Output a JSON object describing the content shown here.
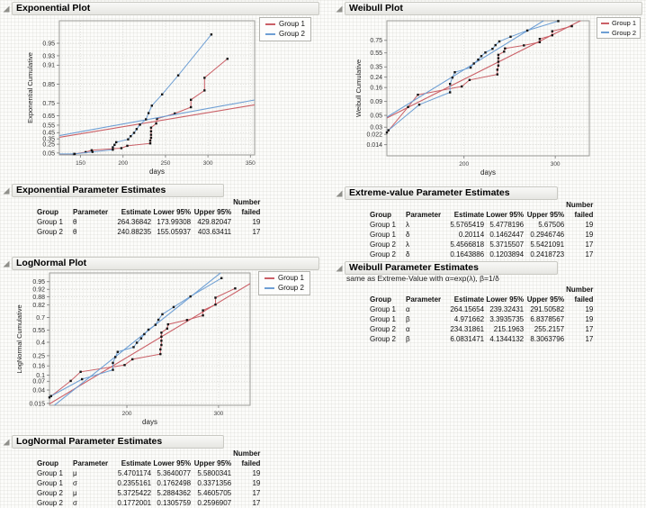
{
  "colors": {
    "group1": "#ca5f66",
    "group2": "#6e9fd4",
    "points": "#151515",
    "plot_border": "#9c9c98",
    "grid": "#dcdcd8",
    "header_bar": "#e6e6e2"
  },
  "legend": {
    "labels": [
      "Group 1",
      "Group 2"
    ]
  },
  "groups": [
    {
      "name": "Group 1",
      "color": "#ca5f66",
      "points": [
        [
          142,
          0.0238
        ],
        [
          156,
          0.0714
        ],
        [
          163,
          0.119
        ],
        [
          198,
          0.1667
        ],
        [
          205,
          0.2158
        ],
        [
          232,
          0.2664
        ],
        [
          232,
          0.317
        ],
        [
          233,
          0.3676
        ],
        [
          233,
          0.4182
        ],
        [
          233,
          0.4688
        ],
        [
          233,
          0.5194
        ],
        [
          239,
          0.57
        ],
        [
          240,
          0.6206
        ],
        [
          261,
          0.6712
        ],
        [
          280,
          0.7218
        ],
        [
          280,
          0.7723
        ],
        [
          296,
          0.8229
        ],
        [
          296,
          0.8735
        ],
        [
          323,
          0.9241
        ]
      ]
    },
    {
      "name": "Group 2",
      "color": "#6e9fd4",
      "points": [
        [
          143,
          0.0263
        ],
        [
          164,
          0.0789
        ],
        [
          188,
          0.1316
        ],
        [
          188,
          0.1842
        ],
        [
          190,
          0.2368
        ],
        [
          192,
          0.2895
        ],
        [
          206,
          0.3421
        ],
        [
          209,
          0.3947
        ],
        [
          213,
          0.4474
        ],
        [
          216,
          0.5
        ],
        [
          220,
          0.5559
        ],
        [
          227,
          0.6151
        ],
        [
          230,
          0.6743
        ],
        [
          234,
          0.7335
        ],
        [
          246,
          0.8026
        ],
        [
          265,
          0.8816
        ],
        [
          304,
          0.9605
        ]
      ]
    }
  ],
  "chart_data": [
    {
      "id": "exponential",
      "type": "line",
      "title": "Exponential Plot",
      "xlabel": "days",
      "ylabel": "Exponential Cumulative",
      "x_scale": "linear",
      "y_transform": "exponential",
      "x_range": [
        125,
        355
      ],
      "y_range_transformed": [
        0,
        3.6
      ],
      "x_ticks": [
        150,
        200,
        250,
        300,
        350
      ],
      "y_tick_labels": [
        "0.05",
        "0.25",
        "0.35",
        "0.45",
        "0.55",
        "0.65",
        "0.75",
        "0.85",
        "0.91",
        "0.93",
        "0.95"
      ],
      "grid": true,
      "legend_position": "top-right",
      "fits": [
        {
          "group": "Group 1",
          "theta": 264.36842
        },
        {
          "group": "Group 2",
          "theta": 240.88235
        }
      ]
    },
    {
      "id": "weibull",
      "type": "line",
      "title": "Weibull Plot",
      "xlabel": "days",
      "ylabel": "Weibull Cumulative",
      "x_scale": "log",
      "y_transform": "weibull",
      "x_range": [
        142,
        349
      ],
      "y_range_transformed": [
        -4.75,
        1.19
      ],
      "x_ticks": [
        200,
        300
      ],
      "y_tick_labels": [
        "0.014",
        "0.022",
        "0.03",
        "0.05",
        "0.09",
        "0.16",
        "0.24",
        "0.35",
        "0.55",
        "0.75"
      ],
      "grid": true,
      "legend_position": "top-right",
      "fits": [
        {
          "group": "Group 1",
          "alpha": 264.15654,
          "beta": 4.971662
        },
        {
          "group": "Group 2",
          "alpha": 234.31861,
          "beta": 6.0831471
        }
      ]
    },
    {
      "id": "lognormal",
      "type": "line",
      "title": "LogNormal Plot",
      "xlabel": "days",
      "ylabel": "LogNormal Cumulative",
      "x_scale": "log",
      "y_transform": "lognormal",
      "x_range": [
        142,
        345
      ],
      "y_range_transformed": [
        -2.23,
        1.92
      ],
      "x_ticks": [
        200,
        300
      ],
      "y_tick_labels": [
        "0.015",
        "0.04",
        "0.07",
        "0.1",
        "0.16",
        "0.25",
        "0.4",
        "0.55",
        "0.7",
        "0.82",
        "0.88",
        "0.92",
        "0.95"
      ],
      "grid": true,
      "legend_position": "top-right",
      "fits": [
        {
          "group": "Group 1",
          "mu": 5.4701174,
          "sigma": 0.2355161
        },
        {
          "group": "Group 2",
          "mu": 5.3725422,
          "sigma": 0.1772001
        }
      ]
    }
  ],
  "tables": {
    "exponential": {
      "title": "Exponential Parameter Estimates",
      "columns": [
        "Group",
        "Parameter",
        "Estimate",
        "Lower 95%",
        "Upper 95%"
      ],
      "number_column": [
        "Number",
        "failed"
      ],
      "rows": [
        [
          "Group 1",
          "θ",
          "264.36842",
          "173.99308",
          "429.82047",
          "19"
        ],
        [
          "Group 2",
          "θ",
          "240.88235",
          "155.05937",
          "403.63411",
          "17"
        ]
      ]
    },
    "extreme_value": {
      "title": "Extreme-value Parameter Estimates",
      "columns": [
        "Group",
        "Parameter",
        "Estimate",
        "Lower 95%",
        "Upper 95%"
      ],
      "number_column": [
        "Number",
        "failed"
      ],
      "rows": [
        [
          "Group 1",
          "λ",
          "5.5765419",
          "5.4778196",
          "5.67506",
          "19"
        ],
        [
          "Group 1",
          "δ",
          "0.20114",
          "0.1462447",
          "0.2946746",
          "19"
        ],
        [
          "Group 2",
          "λ",
          "5.4566818",
          "5.3715507",
          "5.5421091",
          "17"
        ],
        [
          "Group 2",
          "δ",
          "0.1643886",
          "0.1203894",
          "0.2418723",
          "17"
        ]
      ]
    },
    "weibull": {
      "title": "Weibull Parameter Estimates",
      "note": "same as Extreme-Value with α=exp(λ), β=1/δ",
      "columns": [
        "Group",
        "Parameter",
        "Estimate",
        "Lower 95%",
        "Upper 95%"
      ],
      "number_column": [
        "Number",
        "failed"
      ],
      "rows": [
        [
          "Group 1",
          "α",
          "264.15654",
          "239.32431",
          "291.50582",
          "19"
        ],
        [
          "Group 1",
          "β",
          "4.971662",
          "3.3935735",
          "6.8378567",
          "19"
        ],
        [
          "Group 2",
          "α",
          "234.31861",
          "215.1963",
          "255.2157",
          "17"
        ],
        [
          "Group 2",
          "β",
          "6.0831471",
          "4.1344132",
          "8.3063796",
          "17"
        ]
      ]
    },
    "lognormal": {
      "title": "LogNormal Parameter Estimates",
      "columns": [
        "Group",
        "Parameter",
        "Estimate",
        "Lower 95%",
        "Upper 95%"
      ],
      "number_column": [
        "Number",
        "failed"
      ],
      "rows": [
        [
          "Group 1",
          "μ",
          "5.4701174",
          "5.3640077",
          "5.5800341",
          "19"
        ],
        [
          "Group 1",
          "σ",
          "0.2355161",
          "0.1762498",
          "0.3371356",
          "19"
        ],
        [
          "Group 2",
          "μ",
          "5.3725422",
          "5.2884362",
          "5.4605705",
          "17"
        ],
        [
          "Group 2",
          "σ",
          "0.1772001",
          "0.1305759",
          "0.2596907",
          "17"
        ]
      ]
    }
  }
}
